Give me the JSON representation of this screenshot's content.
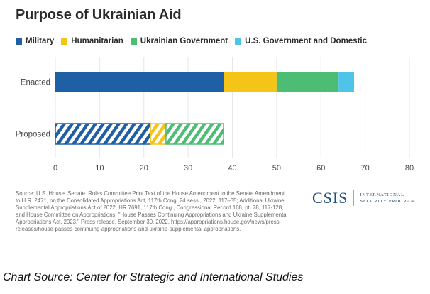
{
  "chart_data": {
    "type": "bar",
    "orientation": "horizontal",
    "stacked": true,
    "title": "Purpose of Ukrainian Aid",
    "categories": [
      "Enacted",
      "Proposed"
    ],
    "series": [
      {
        "name": "Military",
        "values": [
          38,
          21.5
        ],
        "color": "#1f5fa6"
      },
      {
        "name": "Humanitarian",
        "values": [
          12,
          3.5
        ],
        "color": "#f5c419"
      },
      {
        "name": "Ukrainian Government",
        "values": [
          14,
          13
        ],
        "color": "#4dbd74"
      },
      {
        "name": "U.S. Government and Domestic",
        "values": [
          3.5,
          0
        ],
        "color": "#4fc3e8"
      }
    ],
    "proposed_style": "hatched",
    "xlim": [
      0,
      80
    ],
    "xticks": [
      "0",
      "10",
      "20",
      "30",
      "40",
      "50",
      "60",
      "70",
      "80"
    ],
    "grid": true,
    "legend_position": "top"
  },
  "source_text": "Source: U.S. House. Senate. Rules Committee Print Text of the House Amendment to the Senate Amendment to H.R. 2471, on the Consolidated Appropriations Act, 117th Cong. 2d sess., 2022. 117–35; Additional Ukraine Supplemental Appropriations Act of 2022, HR 7691, 117th Cong., Congressional Record 168, pt. 78, 117-128; and House Committee on Appropriations, \"House Passes Continuing Appropriations and Ukraine Supplemental Appropriations Act, 2023,\" Press release, September 30, 2022, https://appropriations.house.gov/news/press-releases/house-passes-continuing-appropriations-and-ukraine-supplemental-appropriations.",
  "logo": {
    "mark": "CSIS",
    "line1": "International",
    "line2": "Security Program"
  },
  "caption": "Chart Source: Center for Strategic and International Studies"
}
